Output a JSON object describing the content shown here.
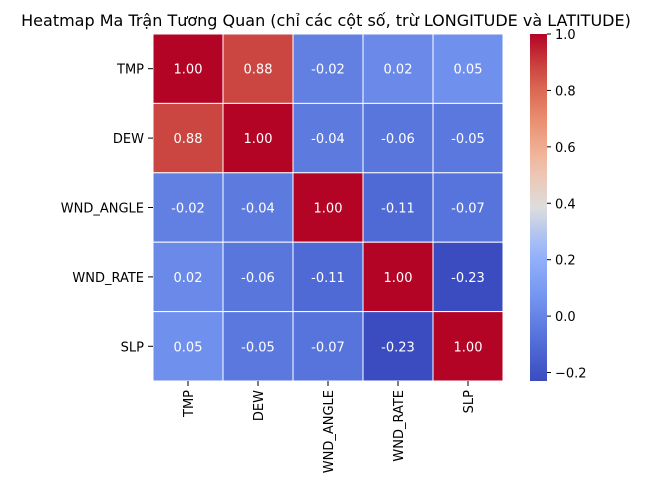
{
  "chart_data": {
    "type": "heatmap",
    "title": "Heatmap Ma Trận Tương Quan (chỉ các cột số, trừ LONGITUDE và LATITUDE)",
    "rows": [
      "TMP",
      "DEW",
      "WND_ANGLE",
      "WND_RATE",
      "SLP"
    ],
    "columns": [
      "TMP",
      "DEW",
      "WND_ANGLE",
      "WND_RATE",
      "SLP"
    ],
    "values": [
      [
        1.0,
        0.88,
        -0.02,
        0.02,
        0.05
      ],
      [
        0.88,
        1.0,
        -0.04,
        -0.06,
        -0.05
      ],
      [
        -0.02,
        -0.04,
        1.0,
        -0.11,
        -0.07
      ],
      [
        0.02,
        -0.06,
        -0.11,
        1.0,
        -0.23
      ],
      [
        0.05,
        -0.05,
        -0.07,
        -0.23,
        1.0
      ]
    ],
    "annotations": [
      [
        "1.00",
        "0.88",
        "-0.02",
        "0.02",
        "0.05"
      ],
      [
        "0.88",
        "1.00",
        "-0.04",
        "-0.06",
        "-0.05"
      ],
      [
        "-0.02",
        "-0.04",
        "1.00",
        "-0.11",
        "-0.07"
      ],
      [
        "0.02",
        "-0.06",
        "-0.11",
        "1.00",
        "-0.23"
      ],
      [
        "0.05",
        "-0.05",
        "-0.07",
        "-0.23",
        "1.00"
      ]
    ],
    "colormap": "coolwarm",
    "vmin": -0.23,
    "vmax": 1.0,
    "colorbar_ticks": [
      -0.2,
      0.0,
      0.2,
      0.4,
      0.6,
      0.8,
      1.0
    ],
    "colorbar_tick_labels": [
      "−0.2",
      "0.0",
      "0.2",
      "0.4",
      "0.6",
      "0.8",
      "1.0"
    ],
    "grid_line_color": "#ffffff",
    "annotation_color": "#ffffff"
  }
}
